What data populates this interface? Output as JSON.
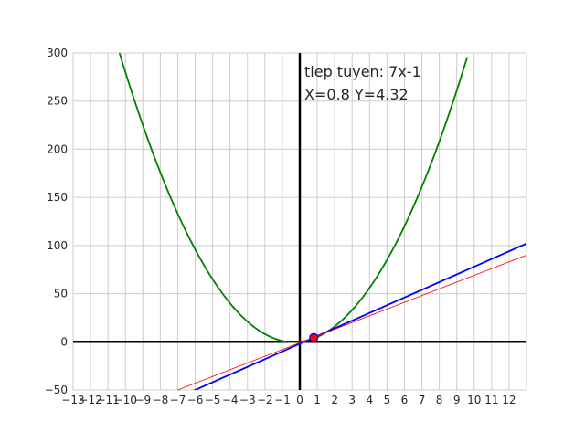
{
  "chart_data": {
    "type": "line",
    "title": "",
    "xlabel": "",
    "ylabel": "",
    "xlim": [
      -13,
      13
    ],
    "ylim": [
      -50,
      300
    ],
    "grid": true,
    "legend": "none",
    "x_ticks": [
      -13,
      -12,
      -11,
      -10,
      -9,
      -8,
      -7,
      -6,
      -5,
      -4,
      -3,
      -2,
      -1,
      0,
      1,
      2,
      3,
      4,
      5,
      6,
      7,
      8,
      9,
      10,
      11,
      12
    ],
    "x_tick_labels": [
      "−13",
      "−12",
      "−11",
      "−10",
      "−9",
      "−8",
      "−7",
      "−6",
      "−5",
      "−4",
      "−3",
      "−2",
      "−1",
      "0",
      "1",
      "2",
      "3",
      "4",
      "5",
      "6",
      "7",
      "8",
      "9",
      "10",
      "11",
      "12"
    ],
    "y_ticks": [
      -50,
      0,
      50,
      100,
      150,
      200,
      250,
      300
    ],
    "y_tick_labels": [
      "−50",
      "0",
      "50",
      "100",
      "150",
      "200",
      "250",
      "300"
    ],
    "series": [
      {
        "function": "y = 3x^2 + 2x",
        "color": "#008000",
        "x": [
          -11,
          -10.5,
          -10,
          -9,
          -8,
          -7,
          -6,
          -5,
          -4,
          -3,
          -2,
          -1,
          -0.5,
          0,
          0.5,
          1,
          2,
          3,
          4,
          5,
          6,
          7,
          8,
          9,
          9.6
        ],
        "y": [
          341,
          309.75,
          280,
          225,
          176,
          133,
          96,
          65,
          40,
          21,
          8,
          1,
          -0.25,
          0,
          1.75,
          5,
          16,
          33,
          56,
          85,
          120,
          161,
          208,
          261,
          295.68
        ]
      },
      {
        "function": "y = 8x - 2",
        "color": "#0000ff",
        "x": [
          -13,
          13
        ],
        "y": [
          -106,
          102
        ]
      },
      {
        "function": "y = 7x - 1",
        "color": "#ff0000",
        "x": [
          -13,
          13
        ],
        "y": [
          -92,
          90
        ]
      }
    ],
    "point": {
      "x": 0.8,
      "y": 4.32,
      "color": "#ff0000",
      "edge": "#0000ff"
    },
    "axes_lines": {
      "color": "#000000"
    },
    "annotation": {
      "line1": "tiep tuyen: 7x-1",
      "line2": "X=0.8  Y=4.32"
    }
  }
}
